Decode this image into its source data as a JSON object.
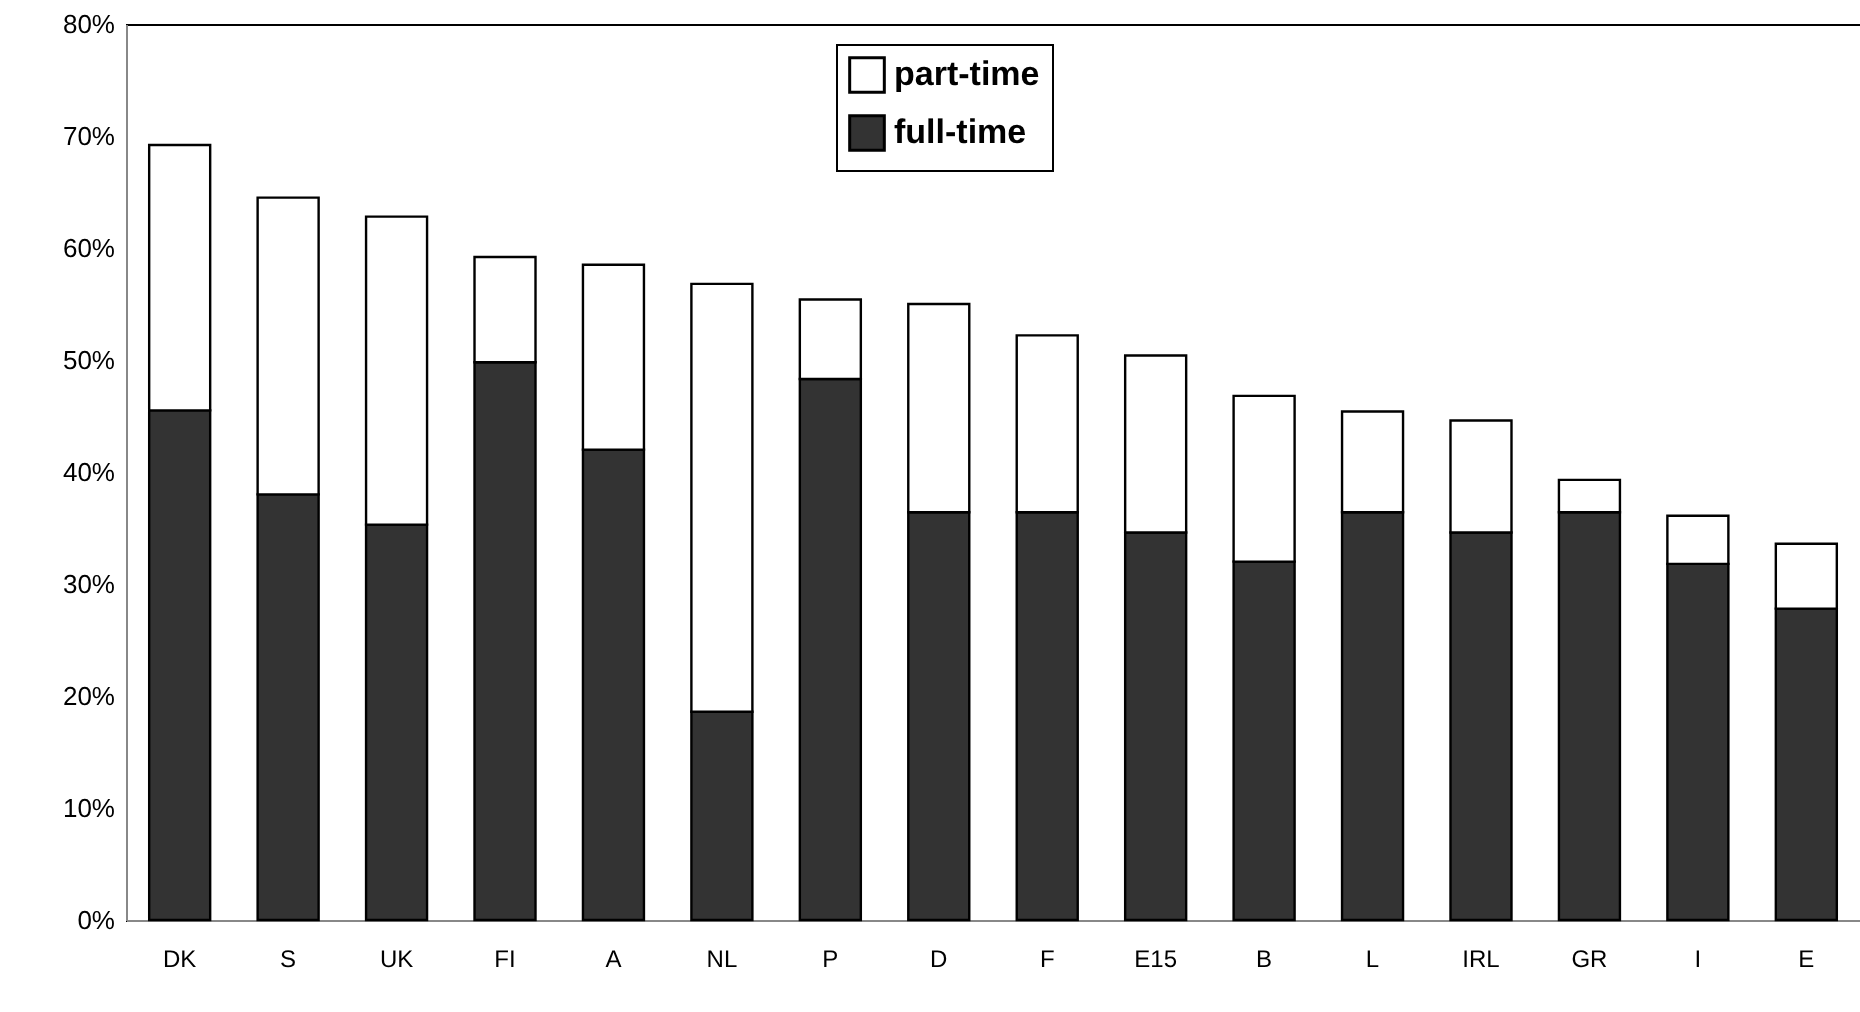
{
  "chart_data": {
    "type": "bar",
    "stacked": true,
    "categories": [
      "DK",
      "S",
      "UK",
      "FI",
      "A",
      "NL",
      "P",
      "D",
      "F",
      "E15",
      "B",
      "L",
      "IRL",
      "GR",
      "I",
      "E"
    ],
    "series": [
      {
        "name": "full-time",
        "color": "#333333",
        "values": [
          45.5,
          38.0,
          35.3,
          49.8,
          42.0,
          18.6,
          48.3,
          36.4,
          36.4,
          34.6,
          32.0,
          36.4,
          34.6,
          36.4,
          31.8,
          27.8
        ]
      },
      {
        "name": "part-time",
        "color": "#ffffff",
        "values": [
          23.7,
          26.5,
          27.5,
          9.4,
          16.5,
          38.2,
          7.1,
          18.6,
          15.8,
          15.8,
          14.8,
          9.0,
          10.0,
          2.9,
          4.3,
          5.8
        ]
      }
    ],
    "ylim": [
      0,
      80
    ],
    "yticks": [
      {
        "value": 0,
        "label": "0%"
      },
      {
        "value": 10,
        "label": "10%"
      },
      {
        "value": 20,
        "label": "20%"
      },
      {
        "value": 30,
        "label": "30%"
      },
      {
        "value": 40,
        "label": "40%"
      },
      {
        "value": 50,
        "label": "50%"
      },
      {
        "value": 60,
        "label": "60%"
      },
      {
        "value": 70,
        "label": "70%"
      },
      {
        "value": 80,
        "label": "80%"
      }
    ],
    "grid": false,
    "legend": "top"
  }
}
